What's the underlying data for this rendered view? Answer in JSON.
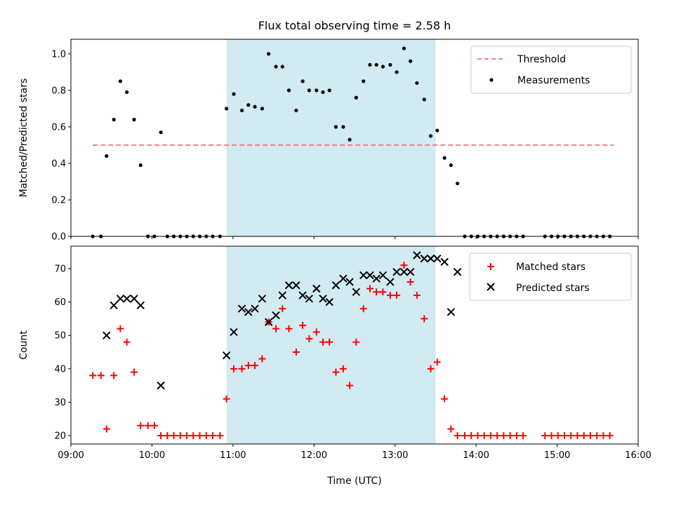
{
  "colors": {
    "threshold": "#f08080",
    "measurement": "#000000",
    "matched": "#ff0000",
    "predicted": "#000000",
    "shade": "#add8e6"
  },
  "chart_data": [
    {
      "type": "scatter",
      "title": "Flux total observing time = 2.58 h",
      "ylabel": "Matched/Predicted stars",
      "xlabel": "",
      "xlim": [
        9.0,
        16.0
      ],
      "ylim": [
        0.0,
        1.08
      ],
      "xticks": [
        9,
        10,
        11,
        12,
        13,
        14,
        15,
        16
      ],
      "yticks": [
        {
          "value": 0.0,
          "label": "0.0"
        },
        {
          "value": 0.2,
          "label": "0.2"
        },
        {
          "value": 0.4,
          "label": "0.4"
        },
        {
          "value": 0.6,
          "label": "0.6"
        },
        {
          "value": 0.8,
          "label": "0.8"
        },
        {
          "value": 1.0,
          "label": "1.0"
        }
      ],
      "shaded_span": [
        10.92,
        13.5
      ],
      "threshold": {
        "name": "Threshold",
        "y": 0.5,
        "x_range": [
          9.27,
          15.7
        ]
      },
      "series": [
        {
          "name": "Measurements",
          "marker": "dot",
          "points": [
            [
              9.27,
              0.0
            ],
            [
              9.37,
              0.0
            ],
            [
              9.44,
              0.44
            ],
            [
              9.53,
              0.64
            ],
            [
              9.61,
              0.85
            ],
            [
              9.69,
              0.79
            ],
            [
              9.78,
              0.64
            ],
            [
              9.86,
              0.39
            ],
            [
              9.95,
              0.0
            ],
            [
              10.03,
              0.0
            ],
            [
              10.11,
              0.57
            ],
            [
              10.19,
              0.0
            ],
            [
              10.27,
              0.0
            ],
            [
              10.35,
              0.0
            ],
            [
              10.43,
              0.0
            ],
            [
              10.51,
              0.0
            ],
            [
              10.59,
              0.0
            ],
            [
              10.67,
              0.0
            ],
            [
              10.75,
              0.0
            ],
            [
              10.84,
              0.0
            ],
            [
              10.92,
              0.7
            ],
            [
              11.01,
              0.78
            ],
            [
              11.11,
              0.69
            ],
            [
              11.19,
              0.72
            ],
            [
              11.27,
              0.71
            ],
            [
              11.36,
              0.7
            ],
            [
              11.44,
              1.0
            ],
            [
              11.53,
              0.93
            ],
            [
              11.61,
              0.93
            ],
            [
              11.69,
              0.8
            ],
            [
              11.78,
              0.69
            ],
            [
              11.86,
              0.85
            ],
            [
              11.94,
              0.8
            ],
            [
              12.03,
              0.8
            ],
            [
              12.11,
              0.79
            ],
            [
              12.19,
              0.8
            ],
            [
              12.27,
              0.6
            ],
            [
              12.36,
              0.6
            ],
            [
              12.44,
              0.53
            ],
            [
              12.52,
              0.76
            ],
            [
              12.61,
              0.85
            ],
            [
              12.69,
              0.94
            ],
            [
              12.77,
              0.94
            ],
            [
              12.85,
              0.93
            ],
            [
              12.94,
              0.94
            ],
            [
              13.02,
              0.9
            ],
            [
              13.11,
              1.03
            ],
            [
              13.19,
              0.96
            ],
            [
              13.27,
              0.84
            ],
            [
              13.36,
              0.75
            ],
            [
              13.44,
              0.55
            ],
            [
              13.52,
              0.58
            ],
            [
              13.61,
              0.43
            ],
            [
              13.69,
              0.39
            ],
            [
              13.77,
              0.29
            ],
            [
              13.86,
              0.0
            ],
            [
              13.94,
              0.0
            ],
            [
              14.02,
              0.0
            ],
            [
              14.1,
              0.0
            ],
            [
              14.18,
              0.0
            ],
            [
              14.26,
              0.0
            ],
            [
              14.34,
              0.0
            ],
            [
              14.42,
              0.0
            ],
            [
              14.5,
              0.0
            ],
            [
              14.58,
              0.0
            ],
            [
              14.85,
              0.0
            ],
            [
              14.93,
              0.0
            ],
            [
              15.01,
              0.0
            ],
            [
              15.09,
              0.0
            ],
            [
              15.17,
              0.0
            ],
            [
              15.25,
              0.0
            ],
            [
              15.33,
              0.0
            ],
            [
              15.41,
              0.0
            ],
            [
              15.49,
              0.0
            ],
            [
              15.57,
              0.0
            ],
            [
              15.65,
              0.0
            ]
          ]
        }
      ],
      "legend_position": "top-right"
    },
    {
      "type": "scatter",
      "title": "",
      "ylabel": "Count",
      "xlabel": "Time (UTC)",
      "xlim": [
        9.0,
        16.0
      ],
      "ylim": [
        17.5,
        76.7
      ],
      "xticks": [
        {
          "value": 9,
          "label": "09:00"
        },
        {
          "value": 10,
          "label": "10:00"
        },
        {
          "value": 11,
          "label": "11:00"
        },
        {
          "value": 12,
          "label": "12:00"
        },
        {
          "value": 13,
          "label": "13:00"
        },
        {
          "value": 14,
          "label": "14:00"
        },
        {
          "value": 15,
          "label": "15:00"
        },
        {
          "value": 16,
          "label": "16:00"
        }
      ],
      "yticks": [
        {
          "value": 20,
          "label": "20"
        },
        {
          "value": 30,
          "label": "30"
        },
        {
          "value": 40,
          "label": "40"
        },
        {
          "value": 50,
          "label": "50"
        },
        {
          "value": 60,
          "label": "60"
        },
        {
          "value": 70,
          "label": "70"
        }
      ],
      "shaded_span": [
        10.92,
        13.5
      ],
      "series": [
        {
          "name": "Matched stars",
          "marker": "plus",
          "points": [
            [
              9.27,
              38
            ],
            [
              9.37,
              38
            ],
            [
              9.44,
              22
            ],
            [
              9.53,
              38
            ],
            [
              9.61,
              52
            ],
            [
              9.69,
              48
            ],
            [
              9.78,
              39
            ],
            [
              9.86,
              23
            ],
            [
              9.95,
              23
            ],
            [
              10.03,
              23
            ],
            [
              10.11,
              20
            ],
            [
              10.19,
              20
            ],
            [
              10.27,
              20
            ],
            [
              10.35,
              20
            ],
            [
              10.43,
              20
            ],
            [
              10.51,
              20
            ],
            [
              10.59,
              20
            ],
            [
              10.67,
              20
            ],
            [
              10.75,
              20
            ],
            [
              10.84,
              20
            ],
            [
              10.92,
              31
            ],
            [
              11.01,
              40
            ],
            [
              11.11,
              40
            ],
            [
              11.19,
              41
            ],
            [
              11.27,
              41
            ],
            [
              11.36,
              43
            ],
            [
              11.44,
              54
            ],
            [
              11.53,
              52
            ],
            [
              11.61,
              58
            ],
            [
              11.69,
              52
            ],
            [
              11.78,
              45
            ],
            [
              11.86,
              53
            ],
            [
              11.94,
              49
            ],
            [
              12.03,
              51
            ],
            [
              12.11,
              48
            ],
            [
              12.19,
              48
            ],
            [
              12.27,
              39
            ],
            [
              12.36,
              40
            ],
            [
              12.44,
              35
            ],
            [
              12.52,
              48
            ],
            [
              12.61,
              58
            ],
            [
              12.69,
              64
            ],
            [
              12.77,
              63
            ],
            [
              12.85,
              63
            ],
            [
              12.94,
              62
            ],
            [
              13.02,
              62
            ],
            [
              13.11,
              71
            ],
            [
              13.19,
              66
            ],
            [
              13.27,
              62
            ],
            [
              13.36,
              55
            ],
            [
              13.44,
              40
            ],
            [
              13.52,
              42
            ],
            [
              13.61,
              31
            ],
            [
              13.69,
              22
            ],
            [
              13.77,
              20
            ],
            [
              13.86,
              20
            ],
            [
              13.94,
              20
            ],
            [
              14.02,
              20
            ],
            [
              14.1,
              20
            ],
            [
              14.18,
              20
            ],
            [
              14.26,
              20
            ],
            [
              14.34,
              20
            ],
            [
              14.42,
              20
            ],
            [
              14.5,
              20
            ],
            [
              14.58,
              20
            ],
            [
              14.85,
              20
            ],
            [
              14.93,
              20
            ],
            [
              15.01,
              20
            ],
            [
              15.09,
              20
            ],
            [
              15.17,
              20
            ],
            [
              15.25,
              20
            ],
            [
              15.33,
              20
            ],
            [
              15.41,
              20
            ],
            [
              15.49,
              20
            ],
            [
              15.57,
              20
            ],
            [
              15.65,
              20
            ]
          ]
        },
        {
          "name": "Predicted stars",
          "marker": "cross",
          "points": [
            [
              9.44,
              50
            ],
            [
              9.53,
              59
            ],
            [
              9.61,
              61
            ],
            [
              9.69,
              61
            ],
            [
              9.78,
              61
            ],
            [
              9.86,
              59
            ],
            [
              10.11,
              35
            ],
            [
              10.92,
              44
            ],
            [
              11.01,
              51
            ],
            [
              11.11,
              58
            ],
            [
              11.19,
              57
            ],
            [
              11.27,
              58
            ],
            [
              11.36,
              61
            ],
            [
              11.44,
              54
            ],
            [
              11.53,
              56
            ],
            [
              11.61,
              62
            ],
            [
              11.69,
              65
            ],
            [
              11.78,
              65
            ],
            [
              11.86,
              62
            ],
            [
              11.94,
              61
            ],
            [
              12.03,
              64
            ],
            [
              12.11,
              61
            ],
            [
              12.19,
              60
            ],
            [
              12.27,
              65
            ],
            [
              12.36,
              67
            ],
            [
              12.44,
              66
            ],
            [
              12.52,
              63
            ],
            [
              12.61,
              68
            ],
            [
              12.69,
              68
            ],
            [
              12.77,
              67
            ],
            [
              12.85,
              68
            ],
            [
              12.94,
              66
            ],
            [
              13.02,
              69
            ],
            [
              13.11,
              69
            ],
            [
              13.19,
              69
            ],
            [
              13.27,
              74
            ],
            [
              13.36,
              73
            ],
            [
              13.44,
              73
            ],
            [
              13.52,
              73
            ],
            [
              13.61,
              72
            ],
            [
              13.69,
              57
            ],
            [
              13.77,
              69
            ]
          ]
        }
      ],
      "legend_position": "top-right"
    }
  ]
}
